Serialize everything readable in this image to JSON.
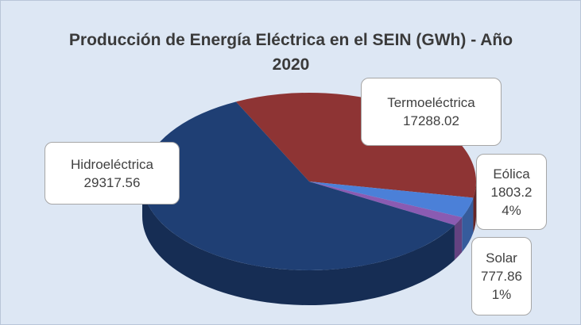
{
  "chart_data": {
    "type": "pie3d",
    "title": "Producción de Energía Eléctrica en el SEIN (GWh) - Año 2020",
    "categories": [
      "Termoeléctrica",
      "Eólica",
      "Solar",
      "Hidroeléctrica"
    ],
    "values": [
      17288.02,
      1803.24,
      777.861,
      29317.56
    ],
    "value_labels": [
      "17288.02",
      "1803.24%",
      "777.861%",
      "29317.56"
    ],
    "colors": [
      "#8e3434",
      "#4b80d8",
      "#8a5bb2",
      "#1f3f74"
    ]
  }
}
